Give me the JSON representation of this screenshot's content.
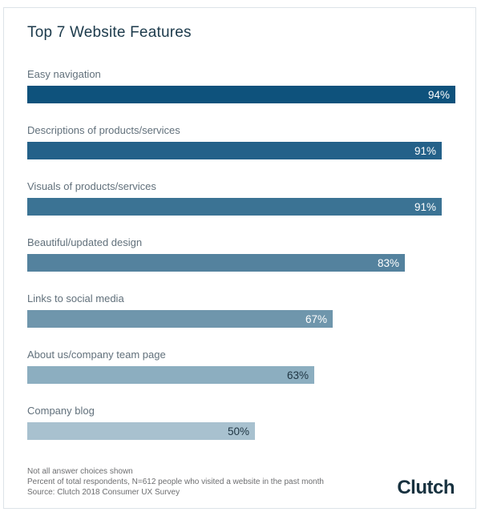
{
  "title": "Top 7 Website Features",
  "chart_data": {
    "type": "bar",
    "orientation": "horizontal",
    "title": "Top 7 Website Features",
    "categories": [
      "Easy navigation",
      "Descriptions of products/services",
      "Visuals of products/services",
      "Beautiful/updated design",
      "Links to social media",
      "About us/company team page",
      "Company blog"
    ],
    "values": [
      94,
      91,
      91,
      83,
      67,
      63,
      50
    ],
    "value_labels": [
      "94%",
      "91%",
      "91%",
      "83%",
      "67%",
      "63%",
      "50%"
    ],
    "unit": "%",
    "xlim": [
      0,
      100
    ],
    "grid": false,
    "legend": false,
    "bar_colors": [
      "#0e527c",
      "#246189",
      "#3b7394",
      "#54829e",
      "#6f96ac",
      "#8caec0",
      "#a8c1cf"
    ],
    "value_label_colors": [
      "#ffffff",
      "#ffffff",
      "#ffffff",
      "#ffffff",
      "#ffffff",
      "#1e3442",
      "#1e3442"
    ]
  },
  "footer": {
    "notes": [
      "Not all answer choices shown",
      "Percent of total respondents, N=612 people who visited a website in the past month",
      "Source: Clutch 2018 Consumer UX Survey"
    ],
    "brand": "Clutch"
  },
  "colors": {
    "card_border": "#dde3e8",
    "title_text": "#1c3a4b",
    "category_text": "#61707b",
    "note_text": "#6d6e70",
    "brand_text": "#17313f"
  }
}
